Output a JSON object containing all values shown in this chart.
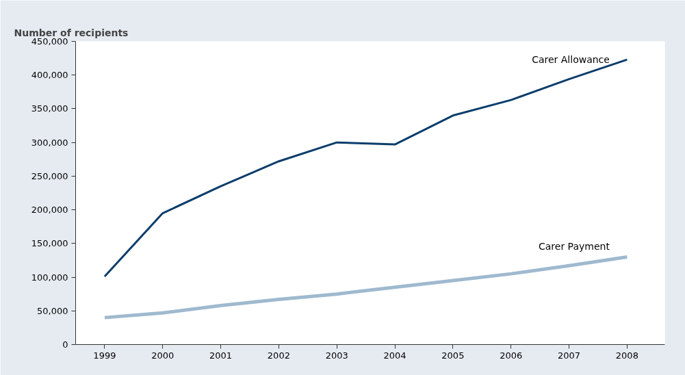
{
  "chart_data": {
    "type": "line",
    "ylabel": "Number of recipients",
    "categories": [
      "1999",
      "2000",
      "2001",
      "2002",
      "2003",
      "2004",
      "2005",
      "2006",
      "2007",
      "2008"
    ],
    "series": [
      {
        "name": "Carer Allowance",
        "color": "#0b3d6b",
        "values": [
          101000,
          195000,
          235000,
          272000,
          300000,
          297000,
          340000,
          363000,
          394000,
          423000
        ]
      },
      {
        "name": "Carer Payment",
        "color": "#9fb9cf",
        "values": [
          40000,
          47000,
          58000,
          67000,
          75000,
          85000,
          95000,
          105000,
          117000,
          130000
        ]
      }
    ],
    "ylim": [
      0,
      450000
    ],
    "yticks": [
      {
        "value": 0,
        "label": "0"
      },
      {
        "value": 50000,
        "label": "50,000"
      },
      {
        "value": 100000,
        "label": "100,000"
      },
      {
        "value": 150000,
        "label": "150,000"
      },
      {
        "value": 200000,
        "label": "200,000"
      },
      {
        "value": 250000,
        "label": "250,000"
      },
      {
        "value": 300000,
        "label": "300,000"
      },
      {
        "value": 350000,
        "label": "350,000"
      },
      {
        "value": 400000,
        "label": "400,000"
      },
      {
        "value": 450000,
        "label": "450,000"
      }
    ],
    "grid": false,
    "legend": false,
    "marker": "none",
    "line_style": "solid"
  }
}
